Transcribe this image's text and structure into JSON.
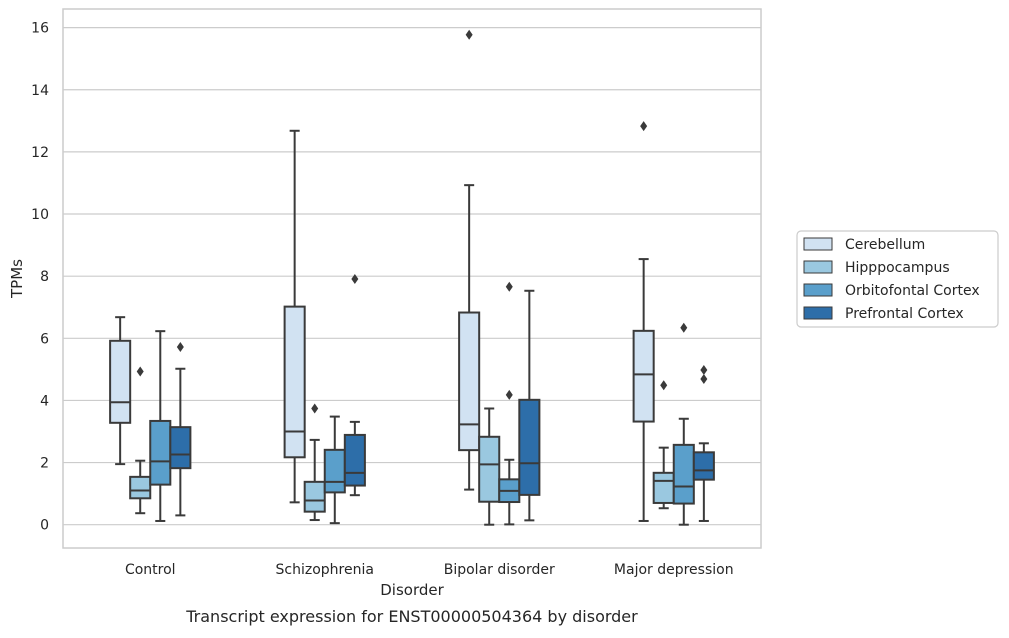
{
  "chart_data": {
    "type": "box",
    "title": "",
    "caption": "Transcript expression for ENST00000504364 by disorder",
    "xlabel": "Disorder",
    "ylabel": "TPMs",
    "ylim": [
      -0.75,
      16.6
    ],
    "yticks": [
      "0",
      "2",
      "4",
      "6",
      "8",
      "10",
      "12",
      "14",
      "16"
    ],
    "ytick_values": [
      0,
      2,
      4,
      6,
      8,
      10,
      12,
      14,
      16
    ],
    "grid": "horizontal",
    "legend_position": "right",
    "categories": [
      "Control",
      "Schizophrenia",
      "Bipolar disorder",
      "Major depression"
    ],
    "series": [
      {
        "name": "Cerebellum",
        "color": "#d1e2f2",
        "boxes": [
          {
            "whislo": 1.95,
            "q1": 3.28,
            "med": 3.94,
            "q3": 5.92,
            "whishi": 6.68,
            "fliers": []
          },
          {
            "whislo": 0.72,
            "q1": 2.17,
            "med": 3.0,
            "q3": 7.02,
            "whishi": 12.68,
            "fliers": []
          },
          {
            "whislo": 1.13,
            "q1": 2.4,
            "med": 3.23,
            "q3": 6.83,
            "whishi": 10.93,
            "fliers": [
              15.77
            ]
          },
          {
            "whislo": 0.12,
            "q1": 3.32,
            "med": 4.84,
            "q3": 6.24,
            "whishi": 8.55,
            "fliers": [
              12.83
            ]
          }
        ]
      },
      {
        "name": "Hipppocampus",
        "color": "#9ac8e0",
        "boxes": [
          {
            "whislo": 0.37,
            "q1": 0.85,
            "med": 1.1,
            "q3": 1.54,
            "whishi": 2.06,
            "fliers": [
              4.93
            ]
          },
          {
            "whislo": 0.15,
            "q1": 0.42,
            "med": 0.78,
            "q3": 1.38,
            "whishi": 2.73,
            "fliers": [
              3.74
            ]
          },
          {
            "whislo": 0.0,
            "q1": 0.74,
            "med": 1.94,
            "q3": 2.83,
            "whishi": 3.74,
            "fliers": []
          },
          {
            "whislo": 0.53,
            "q1": 0.7,
            "med": 1.41,
            "q3": 1.67,
            "whishi": 2.48,
            "fliers": [
              4.49
            ]
          }
        ]
      },
      {
        "name": "Orbitofontal Cortex",
        "color": "#5a9fcb",
        "boxes": [
          {
            "whislo": 0.12,
            "q1": 1.29,
            "med": 2.04,
            "q3": 3.34,
            "whishi": 6.23,
            "fliers": []
          },
          {
            "whislo": 0.05,
            "q1": 1.04,
            "med": 1.38,
            "q3": 2.41,
            "whishi": 3.48,
            "fliers": []
          },
          {
            "whislo": 0.01,
            "q1": 0.73,
            "med": 1.09,
            "q3": 1.46,
            "whishi": 2.09,
            "fliers": [
              7.66,
              4.18
            ]
          },
          {
            "whislo": 0.0,
            "q1": 0.68,
            "med": 1.23,
            "q3": 2.57,
            "whishi": 3.41,
            "fliers": [
              6.34
            ]
          }
        ]
      },
      {
        "name": "Prefrontal Cortex",
        "color": "#2d6ea9",
        "boxes": [
          {
            "whislo": 0.3,
            "q1": 1.82,
            "med": 2.26,
            "q3": 3.14,
            "whishi": 5.02,
            "fliers": [
              5.72
            ]
          },
          {
            "whislo": 0.95,
            "q1": 1.26,
            "med": 1.67,
            "q3": 2.89,
            "whishi": 3.31,
            "fliers": [
              7.91
            ]
          },
          {
            "whislo": 0.14,
            "q1": 0.96,
            "med": 1.98,
            "q3": 4.02,
            "whishi": 7.53,
            "fliers": []
          },
          {
            "whislo": 0.12,
            "q1": 1.45,
            "med": 1.75,
            "q3": 2.33,
            "whishi": 2.62,
            "fliers": [
              4.98,
              4.69
            ]
          }
        ]
      }
    ]
  }
}
